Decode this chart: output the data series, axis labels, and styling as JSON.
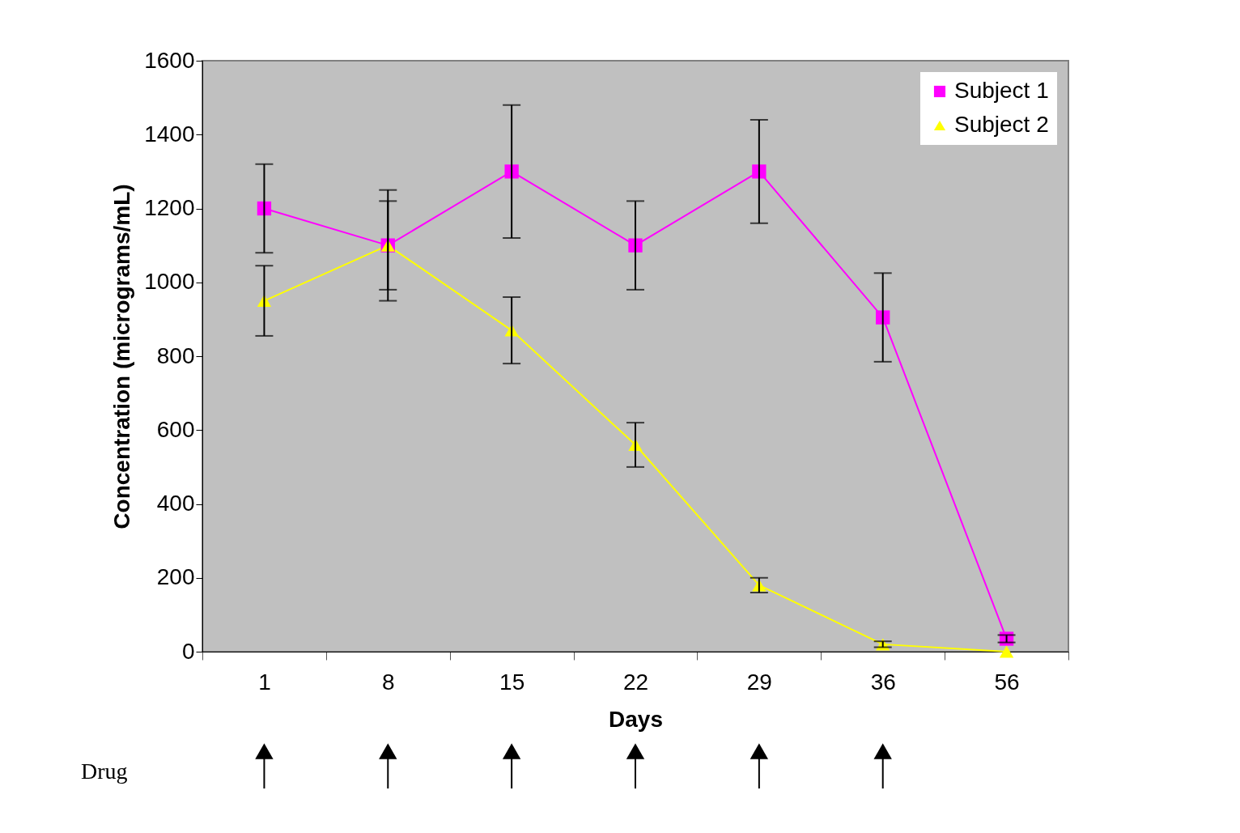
{
  "chart_data": {
    "type": "line",
    "xlabel": "Days",
    "ylabel": "Concentration (micrograms/mL)",
    "categories": [
      "1",
      "8",
      "15",
      "22",
      "29",
      "36",
      "56"
    ],
    "series": [
      {
        "name": "Subject 1",
        "color": "#ff00ff",
        "marker": "square",
        "values": [
          1200,
          1100,
          1300,
          1100,
          1300,
          905,
          35
        ],
        "errors": [
          120,
          120,
          180,
          120,
          140,
          120,
          10
        ]
      },
      {
        "name": "Subject 2",
        "color": "#ffff00",
        "marker": "triangle",
        "values": [
          950,
          1100,
          870,
          560,
          180,
          20,
          0
        ],
        "errors": [
          95,
          150,
          90,
          60,
          20,
          8,
          null
        ]
      }
    ],
    "ylim": [
      0,
      1600
    ],
    "yticks": [
      0,
      200,
      400,
      600,
      800,
      1000,
      1200,
      1400,
      1600
    ],
    "grid": false,
    "legend": "top right",
    "line_style": "solid",
    "annotations": [
      "Drug"
    ]
  }
}
